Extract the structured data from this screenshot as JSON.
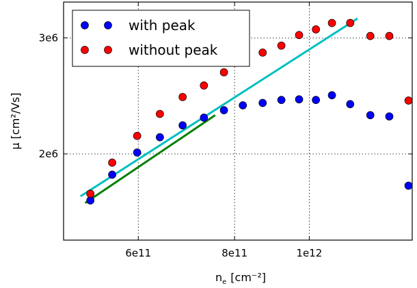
{
  "chart_data": {
    "type": "scatter",
    "title": "",
    "xlabel": "n",
    "xlabel_sub": "e",
    "xlabel_unit": "[cm⁻²]",
    "ylabel": "μ [cm²/Vs]",
    "xscale": "log",
    "yscale": "log",
    "xlim": [
      480000000000.0,
      1360000000000.0
    ],
    "ylim": [
      1480000.0,
      3400000.0
    ],
    "xticks": [
      600000000000.0,
      800000000000.0,
      1000000000000.0
    ],
    "xtick_labels": [
      "6e11",
      "8e11",
      "1e12"
    ],
    "yticks": [
      2000000.0,
      3000000.0
    ],
    "ytick_labels": [
      "2e6",
      "3e6"
    ],
    "grid": true,
    "legend_position": "top-left",
    "series": [
      {
        "name": "with peak",
        "color": "#0000ff",
        "marker": "circle",
        "x": [
          520000000000.0,
          555000000000.0,
          598000000000.0,
          640000000000.0,
          685000000000.0,
          730000000000.0,
          775000000000.0,
          820000000000.0,
          870000000000.0,
          920000000000.0,
          970000000000.0,
          1020000000000.0,
          1070000000000.0,
          1130000000000.0,
          1200000000000.0,
          1270000000000.0,
          1345000000000.0
        ],
        "y": [
          1700000.0,
          1860000.0,
          2010000.0,
          2120000.0,
          2210000.0,
          2270000.0,
          2330000.0,
          2370000.0,
          2390000.0,
          2415000.0,
          2420000.0,
          2415000.0,
          2455000.0,
          2380000.0,
          2290000.0,
          2280000.0,
          1790000.0
        ]
      },
      {
        "name": "without peak",
        "color": "#ff0000",
        "marker": "circle",
        "x": [
          520000000000.0,
          555000000000.0,
          598000000000.0,
          640000000000.0,
          685000000000.0,
          730000000000.0,
          775000000000.0,
          820000000000.0,
          870000000000.0,
          920000000000.0,
          970000000000.0,
          1020000000000.0,
          1070000000000.0,
          1130000000000.0,
          1200000000000.0,
          1270000000000.0,
          1345000000000.0
        ],
        "y": [
          1740000.0,
          1940000.0,
          2130000.0,
          2300000.0,
          2440000.0,
          2540000.0,
          2660000.0,
          2760000.0,
          2850000.0,
          2920000.0,
          3030000.0,
          3090000.0,
          3160000.0,
          3160000.0,
          3020000.0,
          3020000.0,
          2410000.0
        ]
      }
    ],
    "fit_lines": [
      {
        "color": "#00bfbf",
        "x": [
          505000000000.0,
          1155000000000.0
        ],
        "y": [
          1725000.0,
          3210000.0
        ]
      },
      {
        "color": "#008000",
        "x": [
          512000000000.0,
          755000000000.0
        ],
        "y": [
          1685000.0,
          2290000.0
        ]
      }
    ]
  }
}
